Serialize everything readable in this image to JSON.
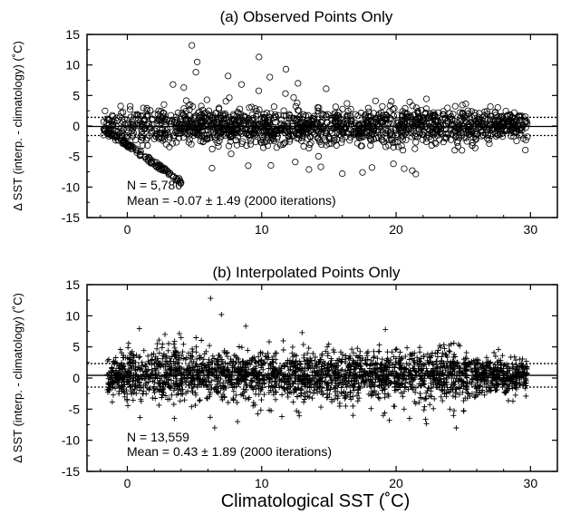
{
  "figure": {
    "xlabel": "Climatological SST (˚C)"
  },
  "chart_data": [
    {
      "type": "scatter",
      "title": "(a) Observed Points Only",
      "xlabel": "",
      "ylabel": "Δ SST (interp. - climatology) (˚C)",
      "xlim": [
        -3,
        32
      ],
      "ylim": [
        -15,
        15
      ],
      "xticks": [
        0,
        10,
        20,
        30
      ],
      "yticks": [
        15,
        10,
        5,
        0,
        -5,
        -10,
        -15
      ],
      "grid": false,
      "marker": "circle",
      "n_points": 5780,
      "mean_line": -0.07,
      "dotted_lines": [
        1.42,
        -1.56
      ],
      "annotations": [
        "N = 5,780",
        "Mean = -0.07 ± 1.49 (2000 iterations)"
      ],
      "cloud": {
        "x_range": [
          -1.8,
          29.8
        ],
        "spread": 1.49
      },
      "outliers": [
        {
          "x": 4.8,
          "y": 13.2
        },
        {
          "x": 5.2,
          "y": 10.5
        },
        {
          "x": 5.1,
          "y": 8.8
        },
        {
          "x": 9.8,
          "y": 11.3
        },
        {
          "x": 11.8,
          "y": 9.3
        },
        {
          "x": 7.5,
          "y": 8.2
        },
        {
          "x": 8.5,
          "y": 6.8
        },
        {
          "x": 4.2,
          "y": 6.3
        },
        {
          "x": 3.4,
          "y": 6.8
        },
        {
          "x": 10.6,
          "y": 8.0
        },
        {
          "x": 12.7,
          "y": 7.0
        },
        {
          "x": 14.8,
          "y": 6.1
        },
        {
          "x": 9.0,
          "y": -6.5
        },
        {
          "x": 14.4,
          "y": -6.7
        },
        {
          "x": 16.0,
          "y": -7.8
        },
        {
          "x": 17.5,
          "y": -7.6
        },
        {
          "x": 18.2,
          "y": -6.8
        },
        {
          "x": 20.6,
          "y": -7.0
        },
        {
          "x": 21.2,
          "y": -7.3
        },
        {
          "x": 19.8,
          "y": -6.2
        },
        {
          "x": 12.5,
          "y": -5.9
        },
        {
          "x": 6.3,
          "y": -6.9
        },
        {
          "x": 2.4,
          "y": -6.5
        }
      ]
    },
    {
      "type": "scatter",
      "title": "(b) Interpolated Points Only",
      "xlabel": "Climatological SST (˚C)",
      "ylabel": "Δ SST (interp. - climatology) (˚C)",
      "xlim": [
        -3,
        32
      ],
      "ylim": [
        -15,
        15
      ],
      "xticks": [
        0,
        10,
        20,
        30
      ],
      "yticks": [
        15,
        10,
        5,
        0,
        -5,
        -10,
        -15
      ],
      "grid": false,
      "marker": "plus",
      "n_points": 13559,
      "mean_line": 0.43,
      "dotted_lines": [
        2.32,
        -1.46
      ],
      "annotations": [
        "N = 13,559",
        "Mean = 0.43 ± 1.89 (2000 iterations)"
      ],
      "cloud": {
        "x_range": [
          -1.5,
          29.8
        ],
        "spread": 1.89
      },
      "outliers": [
        {
          "x": 6.2,
          "y": 12.8
        },
        {
          "x": 7.0,
          "y": 10.2
        },
        {
          "x": 13.0,
          "y": 7.3
        },
        {
          "x": 19.2,
          "y": 7.8
        },
        {
          "x": 2.8,
          "y": 7.0
        },
        {
          "x": 4.0,
          "y": 6.5
        },
        {
          "x": 6.5,
          "y": -8.0
        },
        {
          "x": 8.2,
          "y": -7.0
        },
        {
          "x": 16.8,
          "y": -6.0
        },
        {
          "x": 19.5,
          "y": -6.8
        },
        {
          "x": 21.0,
          "y": -6.5
        },
        {
          "x": 3.5,
          "y": -6.5
        },
        {
          "x": 11.5,
          "y": -6.2
        },
        {
          "x": 24.0,
          "y": -5.0
        }
      ]
    }
  ]
}
